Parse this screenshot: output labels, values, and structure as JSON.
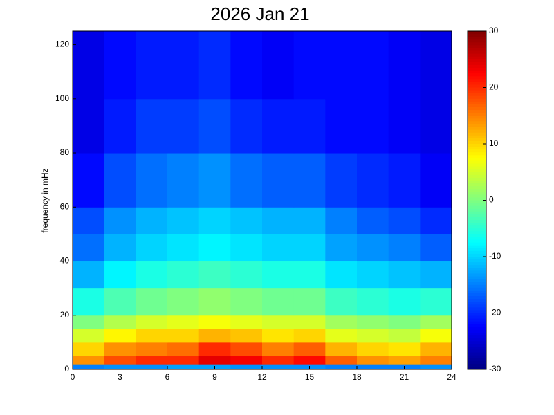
{
  "chart_data": {
    "type": "heatmap",
    "title": "2026 Jan 21",
    "y_label": "frequency in mHz",
    "colormap": "jet",
    "x_bins": [
      0,
      2,
      4,
      6,
      8,
      10,
      12,
      14,
      16,
      18,
      20,
      22,
      24
    ],
    "y_bins": [
      0,
      2,
      5,
      10,
      15,
      20,
      30,
      40,
      50,
      60,
      80,
      100,
      125
    ],
    "z": [
      [
        -15,
        -14,
        -14,
        -13,
        -13,
        -14,
        -14,
        -14,
        -15,
        -15,
        -15,
        -14
      ],
      [
        14,
        18,
        20,
        20,
        24,
        23,
        20,
        22,
        17,
        14,
        13,
        15
      ],
      [
        10,
        14,
        15,
        16,
        20,
        18,
        15,
        17,
        12,
        10,
        9,
        12
      ],
      [
        5,
        8,
        10,
        10,
        12,
        11,
        9,
        10,
        6,
        5,
        4,
        7
      ],
      [
        0,
        3,
        5,
        6,
        7,
        6,
        5,
        5,
        2,
        1,
        0,
        2
      ],
      [
        -6,
        -3,
        -1,
        0,
        1,
        0,
        -1,
        -1,
        -4,
        -5,
        -6,
        -5
      ],
      [
        -12,
        -8,
        -6,
        -5,
        -4,
        -5,
        -6,
        -6,
        -9,
        -10,
        -11,
        -12
      ],
      [
        -16,
        -12,
        -10,
        -9,
        -8,
        -9,
        -10,
        -10,
        -13,
        -14,
        -15,
        -17
      ],
      [
        -18,
        -14,
        -12,
        -11,
        -10,
        -11,
        -12,
        -12,
        -15,
        -17,
        -18,
        -20
      ],
      [
        -22,
        -18,
        -16,
        -15,
        -14,
        -16,
        -17,
        -17,
        -19,
        -20,
        -21,
        -23
      ],
      [
        -24,
        -21,
        -19,
        -19,
        -18,
        -20,
        -21,
        -21,
        -22,
        -22,
        -23,
        -24
      ],
      [
        -24,
        -22,
        -21,
        -21,
        -20,
        -22,
        -23,
        -22,
        -22,
        -22,
        -23,
        -24
      ]
    ],
    "xlim": [
      0,
      24
    ],
    "xticks": [
      0,
      3,
      6,
      9,
      12,
      15,
      18,
      21,
      24
    ],
    "ylim": [
      0,
      125
    ],
    "yticks": [
      0,
      20,
      40,
      60,
      80,
      100,
      120
    ],
    "clim": [
      -30,
      30
    ],
    "cticks": [
      -30,
      -20,
      -10,
      0,
      10,
      20,
      30
    ]
  }
}
